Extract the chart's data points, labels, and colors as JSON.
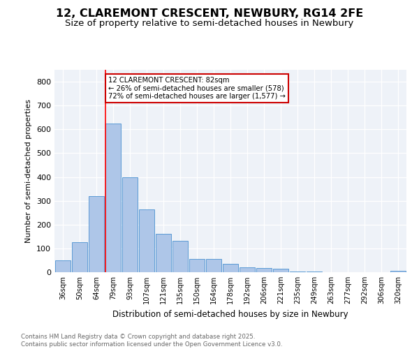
{
  "title": "12, CLAREMONT CRESCENT, NEWBURY, RG14 2FE",
  "subtitle": "Size of property relative to semi-detached houses in Newbury",
  "xlabel": "Distribution of semi-detached houses by size in Newbury",
  "ylabel": "Number of semi-detached properties",
  "categories": [
    "36sqm",
    "50sqm",
    "64sqm",
    "79sqm",
    "93sqm",
    "107sqm",
    "121sqm",
    "135sqm",
    "150sqm",
    "164sqm",
    "178sqm",
    "192sqm",
    "206sqm",
    "221sqm",
    "235sqm",
    "249sqm",
    "263sqm",
    "277sqm",
    "292sqm",
    "306sqm",
    "320sqm"
  ],
  "values": [
    50,
    125,
    320,
    625,
    400,
    265,
    160,
    133,
    55,
    55,
    35,
    20,
    18,
    14,
    3,
    2,
    1,
    1,
    1,
    0,
    7
  ],
  "bar_color": "#aec6e8",
  "bar_edge_color": "#5b9bd5",
  "annotation_text": "12 CLAREMONT CRESCENT: 82sqm\n← 26% of semi-detached houses are smaller (578)\n72% of semi-detached houses are larger (1,577) →",
  "annotation_box_edgecolor": "#cc0000",
  "ylim": [
    0,
    850
  ],
  "yticks": [
    0,
    100,
    200,
    300,
    400,
    500,
    600,
    700,
    800
  ],
  "background_color": "#eef2f8",
  "footer_text": "Contains HM Land Registry data © Crown copyright and database right 2025.\nContains public sector information licensed under the Open Government Licence v3.0.",
  "title_fontsize": 11.5,
  "subtitle_fontsize": 9.5,
  "red_line_at_index": 3
}
